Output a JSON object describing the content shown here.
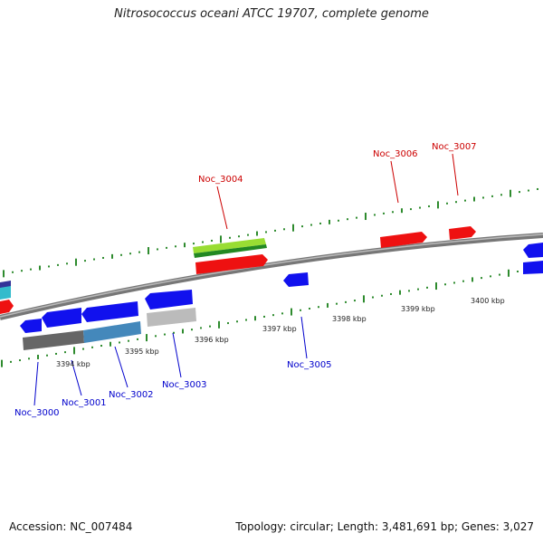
{
  "title": "Nitrosococcus oceani ATCC 19707, complete genome",
  "footer": {
    "accession": "Accession: NC_007484",
    "summary": "Topology: circular; Length: 3,481,691 bp; Genes: 3,027"
  },
  "genes_forward": [
    {
      "id": "Noc_3004",
      "color": "#ff0000"
    },
    {
      "id": "Noc_3006",
      "color": "#ff0000"
    },
    {
      "id": "Noc_3007",
      "color": "#ff0000"
    }
  ],
  "genes_reverse": [
    {
      "id": "Noc_3000",
      "color": "#0000ff"
    },
    {
      "id": "Noc_3001",
      "color": "#0000ff"
    },
    {
      "id": "Noc_3002",
      "color": "#0000ff"
    },
    {
      "id": "Noc_3003",
      "color": "#0000ff"
    },
    {
      "id": "Noc_3005",
      "color": "#0000ff"
    }
  ],
  "kbp_ticks": [
    "3394 kbp",
    "3395 kbp",
    "3396 kbp",
    "3397 kbp",
    "3398 kbp",
    "3399 kbp",
    "3400 kbp"
  ],
  "colors": {
    "backbone": "#888888",
    "tick": "#2e8b2e",
    "forward": "#ff0000",
    "reverse": "#0000ff",
    "feature_green": "#99dd33",
    "feature_dark_green": "#228822",
    "feature_teal": "#3399bb",
    "feature_gray": "#777777",
    "feature_light_gray": "#bbbbbb"
  }
}
